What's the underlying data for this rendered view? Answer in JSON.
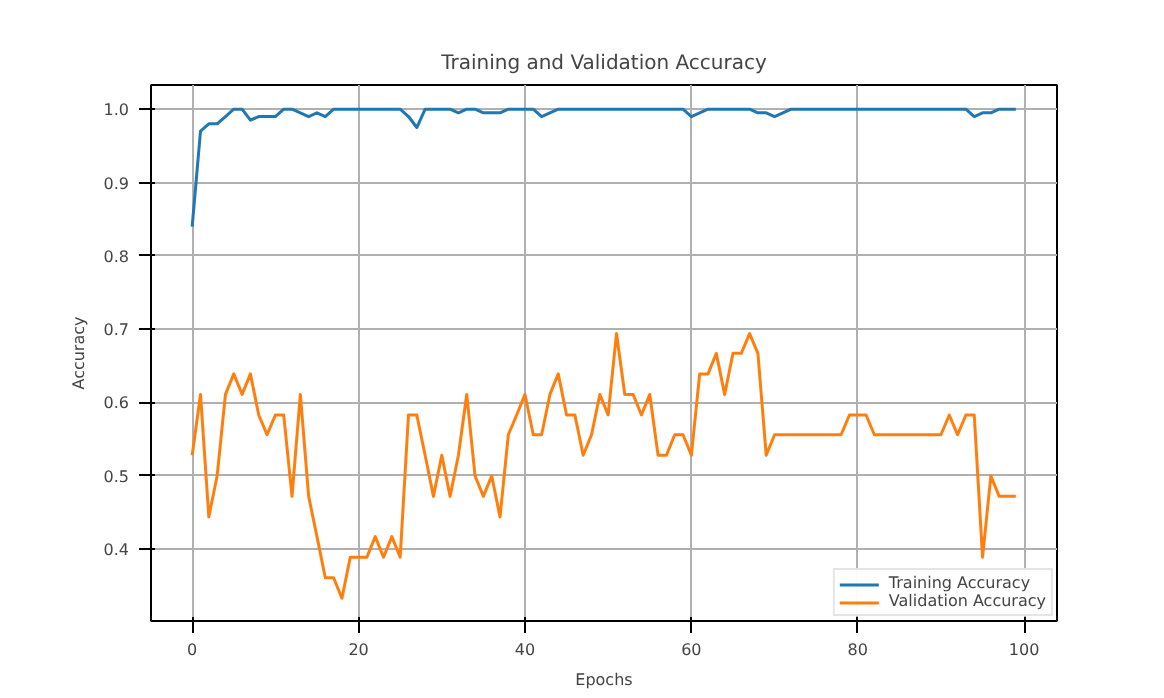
{
  "chart_data": {
    "type": "line",
    "title": "Training and Validation Accuracy",
    "xlabel": "Epochs",
    "ylabel": "Accuracy",
    "x": [
      0,
      1,
      2,
      3,
      4,
      5,
      6,
      7,
      8,
      9,
      10,
      11,
      12,
      13,
      14,
      15,
      16,
      17,
      18,
      19,
      20,
      21,
      22,
      23,
      24,
      25,
      26,
      27,
      28,
      29,
      30,
      31,
      32,
      33,
      34,
      35,
      36,
      37,
      38,
      39,
      40,
      41,
      42,
      43,
      44,
      45,
      46,
      47,
      48,
      49,
      50,
      51,
      52,
      53,
      54,
      55,
      56,
      57,
      58,
      59,
      60,
      61,
      62,
      63,
      64,
      65,
      66,
      67,
      68,
      69,
      70,
      71,
      72,
      73,
      74,
      75,
      76,
      77,
      78,
      79,
      80,
      81,
      82,
      83,
      84,
      85,
      86,
      87,
      88,
      89,
      90,
      91,
      92,
      93,
      94,
      95,
      96,
      97,
      98,
      99
    ],
    "series": [
      {
        "name": "Training Accuracy",
        "color": "#1f77b4",
        "values": [
          0.84,
          0.97,
          0.98,
          0.98,
          0.99,
          1.0,
          1.0,
          0.985,
          0.99,
          0.99,
          0.99,
          1.0,
          1.0,
          0.995,
          0.99,
          0.995,
          0.99,
          1.0,
          1.0,
          1.0,
          1.0,
          1.0,
          1.0,
          1.0,
          1.0,
          1.0,
          0.99,
          0.975,
          1.0,
          1.0,
          1.0,
          1.0,
          0.995,
          1.0,
          1.0,
          0.995,
          0.995,
          0.995,
          1.0,
          1.0,
          1.0,
          1.0,
          0.99,
          0.995,
          1.0,
          1.0,
          1.0,
          1.0,
          1.0,
          1.0,
          1.0,
          1.0,
          1.0,
          1.0,
          1.0,
          1.0,
          1.0,
          1.0,
          1.0,
          1.0,
          0.99,
          0.995,
          1.0,
          1.0,
          1.0,
          1.0,
          1.0,
          1.0,
          0.995,
          0.995,
          0.99,
          0.995,
          1.0,
          1.0,
          1.0,
          1.0,
          1.0,
          1.0,
          1.0,
          1.0,
          1.0,
          1.0,
          1.0,
          1.0,
          1.0,
          1.0,
          1.0,
          1.0,
          1.0,
          1.0,
          1.0,
          1.0,
          1.0,
          1.0,
          0.99,
          0.995,
          0.995,
          1.0,
          1.0,
          1.0
        ]
      },
      {
        "name": "Validation Accuracy",
        "color": "#ff7f0e",
        "values": [
          0.528,
          0.611,
          0.444,
          0.5,
          0.611,
          0.639,
          0.611,
          0.639,
          0.583,
          0.556,
          0.583,
          0.583,
          0.472,
          0.611,
          0.472,
          0.417,
          0.361,
          0.361,
          0.333,
          0.389,
          0.389,
          0.389,
          0.417,
          0.389,
          0.417,
          0.389,
          0.583,
          0.583,
          0.528,
          0.472,
          0.528,
          0.472,
          0.528,
          0.611,
          0.5,
          0.472,
          0.5,
          0.444,
          0.556,
          0.583,
          0.611,
          0.556,
          0.556,
          0.611,
          0.639,
          0.583,
          0.583,
          0.528,
          0.556,
          0.611,
          0.583,
          0.694,
          0.611,
          0.611,
          0.583,
          0.611,
          0.528,
          0.528,
          0.556,
          0.556,
          0.528,
          0.639,
          0.639,
          0.667,
          0.611,
          0.667,
          0.667,
          0.694,
          0.667,
          0.528,
          0.556,
          0.556,
          0.556,
          0.556,
          0.556,
          0.556,
          0.556,
          0.556,
          0.556,
          0.583,
          0.583,
          0.583,
          0.556,
          0.556,
          0.556,
          0.556,
          0.556,
          0.556,
          0.556,
          0.556,
          0.556,
          0.583,
          0.556,
          0.583,
          0.583,
          0.389,
          0.5,
          0.472,
          0.472,
          0.472
        ]
      }
    ],
    "xlim": [
      -4.95,
      103.95
    ],
    "ylim": [
      0.302,
      1.033
    ],
    "xticks": [
      0,
      20,
      40,
      60,
      80,
      100
    ],
    "yticks": [
      0.4,
      0.5,
      0.6,
      0.7,
      0.8,
      0.9,
      {
        "value": 1,
        "label": "1.0"
      }
    ],
    "grid": true,
    "legend": "bottom right",
    "line_style": "solid",
    "marker": "none"
  }
}
